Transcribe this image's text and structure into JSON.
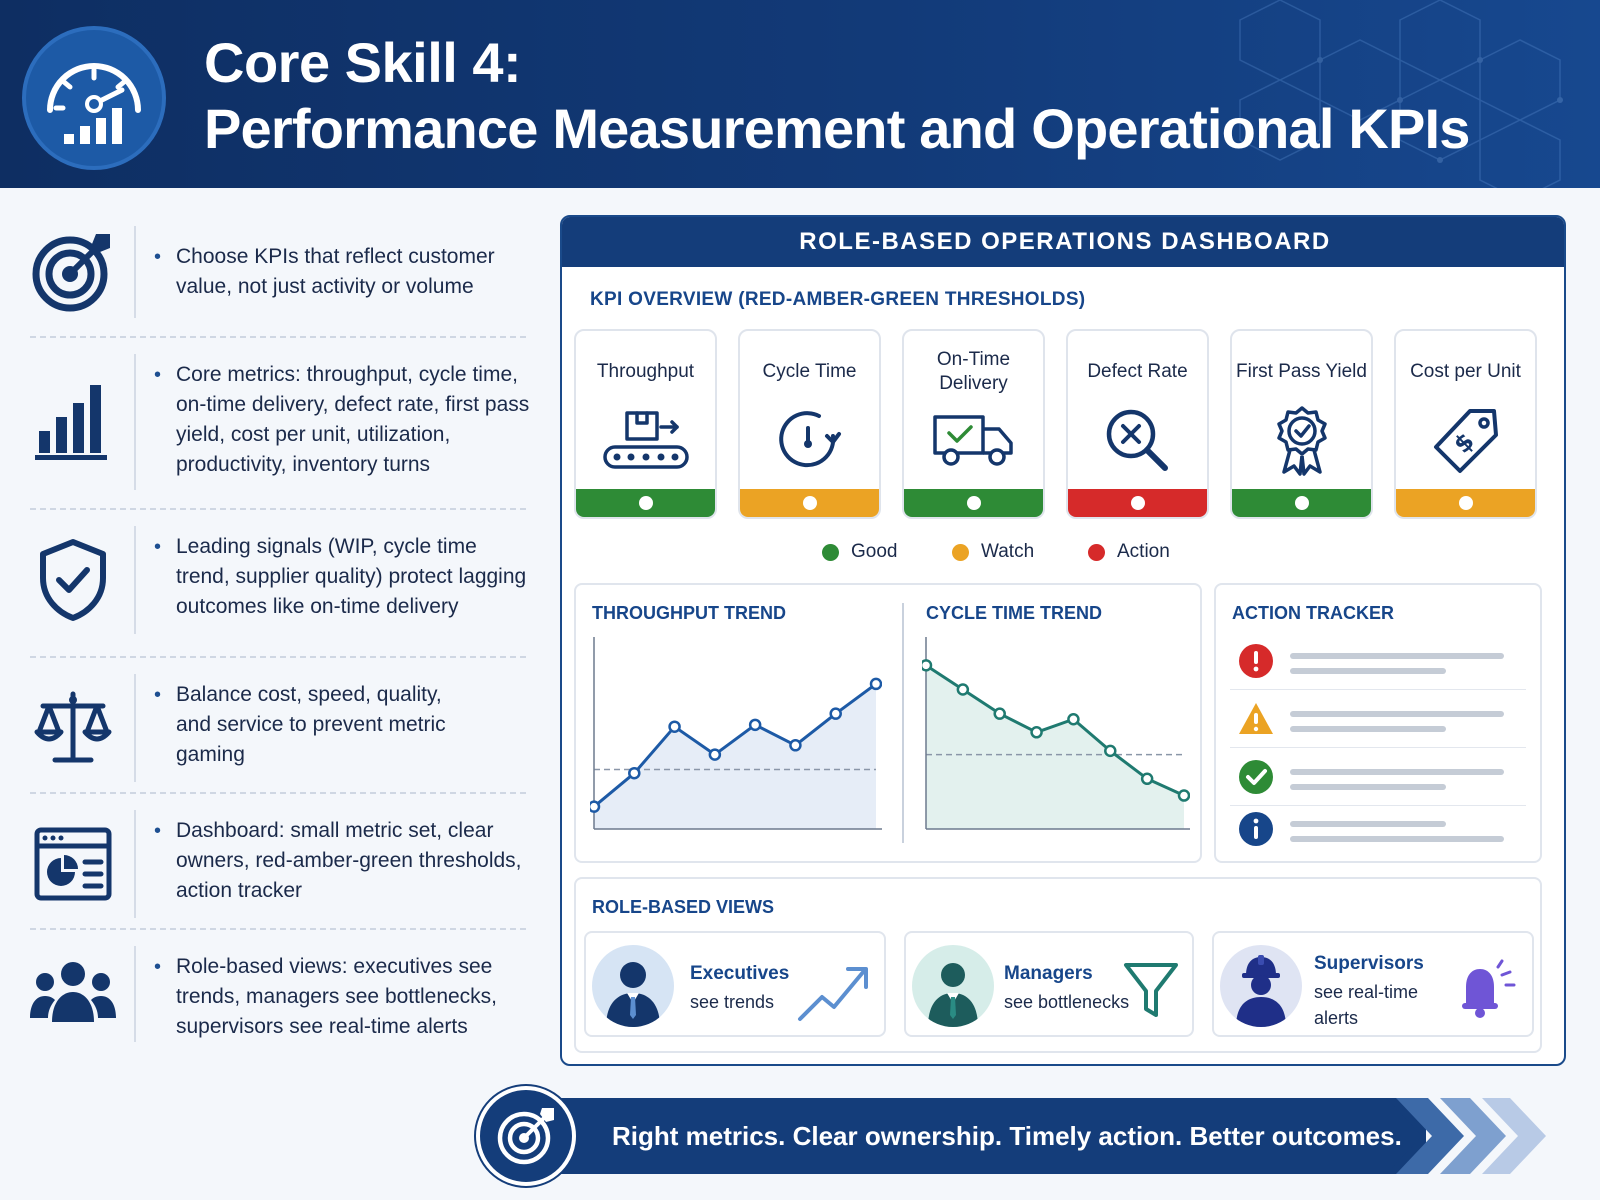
{
  "header": {
    "title_line1": "Core Skill 4:",
    "title_line2": "Performance Measurement and Operational KPIs",
    "badge_icon": "gauge-chart-icon"
  },
  "left_items": [
    {
      "icon": "target-arrow-icon",
      "text": "Choose KPIs that reflect customer value, not just activity or volume"
    },
    {
      "icon": "bar-chart-icon",
      "text": "Core metrics: throughput, cycle time, on-time delivery, defect rate, first pass yield, cost per unit, utilization, productivity, inventory turns"
    },
    {
      "icon": "shield-check-icon",
      "text": "Leading signals (WIP, cycle time trend, supplier quality) protect lagging outcomes like on-time delivery"
    },
    {
      "icon": "balance-scale-icon",
      "text": "Balance cost, speed, quality, and service to prevent metric gaming"
    },
    {
      "icon": "dashboard-window-icon",
      "text": "Dashboard: small metric set, clear owners, red-amber-green thresholds, action tracker"
    },
    {
      "icon": "people-group-icon",
      "text": "Role-based views: executives see trends, managers see bottlenecks, supervisors see real-time alerts"
    }
  ],
  "dashboard": {
    "title": "ROLE-BASED OPERATIONS DASHBOARD",
    "kpi_heading": "KPI OVERVIEW (RED-AMBER-GREEN THRESHOLDS)",
    "kpis": [
      {
        "name": "Throughput",
        "icon": "conveyor-box-icon",
        "status": "good"
      },
      {
        "name": "Cycle Time",
        "icon": "clock-refresh-icon",
        "status": "watch"
      },
      {
        "name": "On-Time Delivery",
        "icon": "delivery-truck-icon",
        "status": "good"
      },
      {
        "name": "Defect Rate",
        "icon": "magnifier-x-icon",
        "status": "action"
      },
      {
        "name": "First Pass Yield",
        "icon": "award-ribbon-icon",
        "status": "good"
      },
      {
        "name": "Cost per Unit",
        "icon": "price-tag-icon",
        "status": "watch"
      }
    ],
    "legend": [
      {
        "label": "Good",
        "color": "#2e8b36"
      },
      {
        "label": "Watch",
        "color": "#eba324"
      },
      {
        "label": "Action",
        "color": "#d62a2a"
      }
    ],
    "status_colors": {
      "good": "#2e8b36",
      "watch": "#eba324",
      "action": "#d62a2a"
    },
    "throughput_trend": {
      "title": "THROUGHPUT TREND",
      "values": [
        0.12,
        0.3,
        0.55,
        0.4,
        0.56,
        0.45,
        0.62,
        0.78
      ],
      "target": 0.32
    },
    "cycle_time_trend": {
      "title": "CYCLE TIME TREND",
      "values": [
        0.88,
        0.75,
        0.62,
        0.52,
        0.59,
        0.42,
        0.27,
        0.18
      ],
      "target": 0.4
    },
    "action_tracker": {
      "title": "ACTION TRACKER",
      "items": [
        {
          "icon": "alert-red-icon",
          "color": "#d62a2a"
        },
        {
          "icon": "warning-amber-icon",
          "color": "#eba324"
        },
        {
          "icon": "check-green-icon",
          "color": "#2e8b36"
        },
        {
          "icon": "info-blue-icon",
          "color": "#17468a"
        }
      ]
    },
    "roles_heading": "ROLE-BASED VIEWS",
    "roles": [
      {
        "name": "Executives",
        "desc": "see trends",
        "icon": "trend-up-arrow-icon"
      },
      {
        "name": "Managers",
        "desc": "see bottlenecks",
        "icon": "funnel-icon"
      },
      {
        "name": "Supervisors",
        "desc": "see real-time alerts",
        "icon": "bell-alert-icon"
      }
    ]
  },
  "banner": {
    "text": "Right metrics. Clear ownership. Timely action. Better outcomes.",
    "icon": "target-arrow-icon"
  }
}
